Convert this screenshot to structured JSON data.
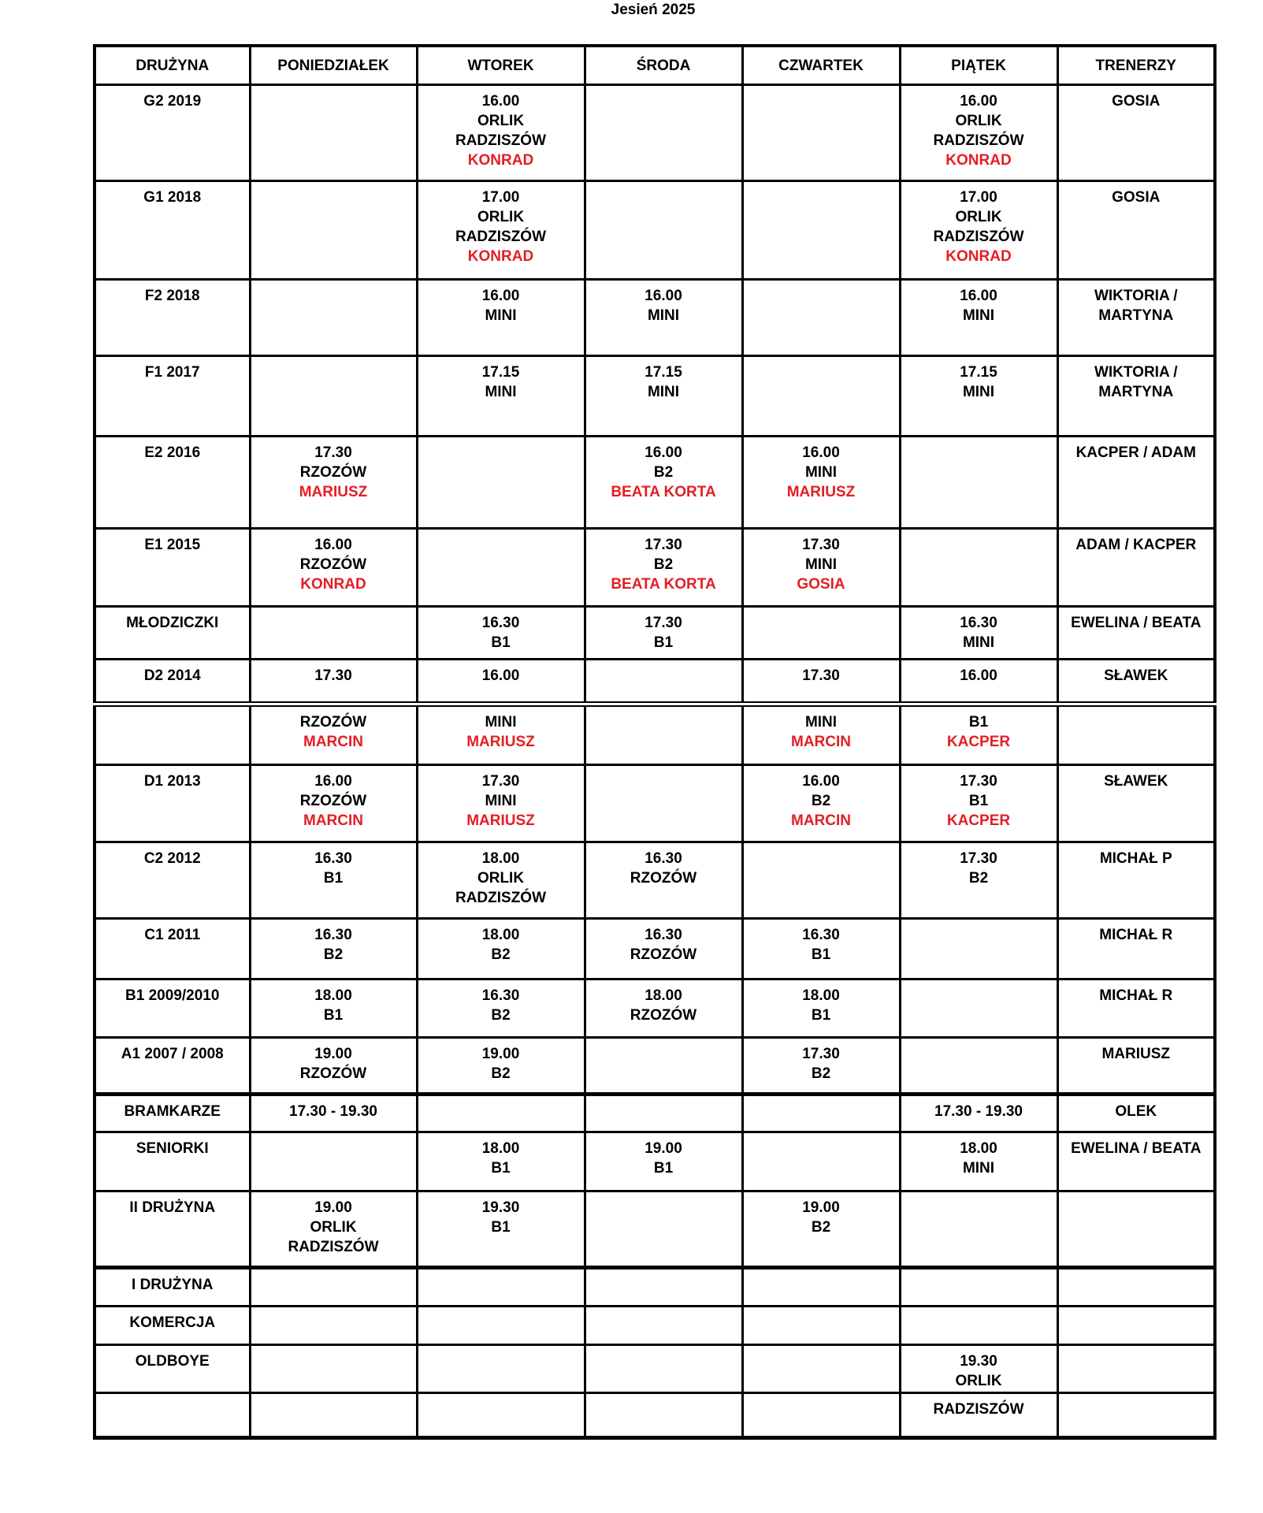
{
  "page": {
    "title": "Jesień 2025"
  },
  "table": {
    "columns": [
      "DRUŻYNA",
      "PONIEDZIAŁEK",
      "WTOREK",
      "ŚRODA",
      "CZWARTEK",
      "PIĄTEK",
      "TRENERZY"
    ],
    "colors": {
      "highlight_red": "#e31e24",
      "text_black": "#000000",
      "border_black": "#000000"
    },
    "rows": [
      {
        "team": "G2 2019",
        "days": [
          [],
          [
            {
              "text": "16.00"
            },
            {
              "text": "ORLIK"
            },
            {
              "text": "RADZISZÓW"
            },
            {
              "text": "KONRAD",
              "red": true
            }
          ],
          [],
          [],
          [
            {
              "text": "16.00"
            },
            {
              "text": "ORLIK"
            },
            {
              "text": "RADZISZÓW"
            },
            {
              "text": "KONRAD",
              "red": true
            }
          ]
        ],
        "trainer": "GOSIA"
      },
      {
        "team": "G1 2018",
        "days": [
          [],
          [
            {
              "text": "17.00"
            },
            {
              "text": "ORLIK"
            },
            {
              "text": "RADZISZÓW"
            },
            {
              "text": "KONRAD",
              "red": true
            }
          ],
          [],
          [],
          [
            {
              "text": "17.00"
            },
            {
              "text": "ORLIK"
            },
            {
              "text": "RADZISZÓW"
            },
            {
              "text": "KONRAD",
              "red": true
            }
          ]
        ],
        "trainer": "GOSIA"
      },
      {
        "team": "F2 2018",
        "days": [
          [],
          [
            {
              "text": "16.00"
            },
            {
              "text": "MINI"
            }
          ],
          [
            {
              "text": "16.00"
            },
            {
              "text": "MINI"
            }
          ],
          [],
          [
            {
              "text": "16.00"
            },
            {
              "text": "MINI"
            }
          ]
        ],
        "trainer": "WIKTORIA / MARTYNA"
      },
      {
        "team": "F1 2017",
        "days": [
          [],
          [
            {
              "text": "17.15"
            },
            {
              "text": "MINI"
            }
          ],
          [
            {
              "text": "17.15"
            },
            {
              "text": "MINI"
            }
          ],
          [],
          [
            {
              "text": "17.15"
            },
            {
              "text": "MINI"
            }
          ]
        ],
        "trainer": "WIKTORIA / MARTYNA"
      },
      {
        "team": "E2 2016",
        "days": [
          [
            {
              "text": "17.30"
            },
            {
              "text": "RZOZÓW"
            },
            {
              "text": "MARIUSZ",
              "red": true
            }
          ],
          [],
          [
            {
              "text": "16.00"
            },
            {
              "text": "B2"
            },
            {
              "text": "BEATA KORTA",
              "red": true
            }
          ],
          [
            {
              "text": "16.00"
            },
            {
              "text": "MINI"
            },
            {
              "text": "MARIUSZ",
              "red": true
            }
          ],
          []
        ],
        "trainer": "KACPER / ADAM"
      },
      {
        "team": "E1 2015",
        "days": [
          [
            {
              "text": "16.00"
            },
            {
              "text": "RZOZÓW"
            },
            {
              "text": "KONRAD",
              "red": true
            }
          ],
          [],
          [
            {
              "text": "17.30"
            },
            {
              "text": "B2"
            },
            {
              "text": "BEATA KORTA",
              "red": true
            }
          ],
          [
            {
              "text": "17.30"
            },
            {
              "text": "MINI"
            },
            {
              "text": "GOSIA",
              "red": true
            }
          ],
          []
        ],
        "trainer": "ADAM / KACPER"
      },
      {
        "team": "MŁODZICZKI",
        "days": [
          [],
          [
            {
              "text": "16.30"
            },
            {
              "text": "B1"
            }
          ],
          [
            {
              "text": "17.30"
            },
            {
              "text": "B1"
            }
          ],
          [],
          [
            {
              "text": "16.30"
            },
            {
              "text": "MINI"
            }
          ]
        ],
        "trainer": "EWELINA / BEATA"
      },
      {
        "team": "D2 2014",
        "days": [
          [
            {
              "text": "17.30"
            }
          ],
          [
            {
              "text": "16.00"
            }
          ],
          [],
          [
            {
              "text": "17.30"
            }
          ],
          [
            {
              "text": "16.00"
            }
          ]
        ],
        "trainer": "SŁAWEK"
      },
      {
        "team": "",
        "days": [
          [
            {
              "text": "RZOZÓW"
            },
            {
              "text": "MARCIN",
              "red": true
            }
          ],
          [
            {
              "text": "MINI"
            },
            {
              "text": "MARIUSZ",
              "red": true
            }
          ],
          [],
          [
            {
              "text": "MINI"
            },
            {
              "text": "MARCIN",
              "red": true
            }
          ],
          [
            {
              "text": "B1"
            },
            {
              "text": "KACPER",
              "red": true
            }
          ]
        ],
        "trainer": ""
      },
      {
        "team": "D1 2013",
        "days": [
          [
            {
              "text": "16.00"
            },
            {
              "text": "RZOZÓW"
            },
            {
              "text": "MARCIN",
              "red": true
            }
          ],
          [
            {
              "text": "17.30"
            },
            {
              "text": "MINI"
            },
            {
              "text": "MARIUSZ",
              "red": true
            }
          ],
          [],
          [
            {
              "text": "16.00"
            },
            {
              "text": "B2"
            },
            {
              "text": "MARCIN",
              "red": true
            }
          ],
          [
            {
              "text": "17.30"
            },
            {
              "text": "B1"
            },
            {
              "text": "KACPER",
              "red": true
            }
          ]
        ],
        "trainer": "SŁAWEK"
      },
      {
        "team": "C2 2012",
        "days": [
          [
            {
              "text": "16.30"
            },
            {
              "text": "B1"
            }
          ],
          [
            {
              "text": "18.00"
            },
            {
              "text": "ORLIK"
            },
            {
              "text": "RADZISZÓW"
            }
          ],
          [
            {
              "text": "16.30"
            },
            {
              "text": "RZOZÓW"
            }
          ],
          [],
          [
            {
              "text": "17.30"
            },
            {
              "text": "B2"
            }
          ]
        ],
        "trainer": "MICHAŁ P"
      },
      {
        "team": "C1 2011",
        "days": [
          [
            {
              "text": "16.30"
            },
            {
              "text": "B2"
            }
          ],
          [
            {
              "text": "18.00"
            },
            {
              "text": "B2"
            }
          ],
          [
            {
              "text": "16.30"
            },
            {
              "text": "RZOZÓW"
            }
          ],
          [
            {
              "text": "16.30"
            },
            {
              "text": "B1"
            }
          ],
          []
        ],
        "trainer": "MICHAŁ R"
      },
      {
        "team": "B1 2009/2010",
        "days": [
          [
            {
              "text": "18.00"
            },
            {
              "text": "B1"
            }
          ],
          [
            {
              "text": "16.30"
            },
            {
              "text": "B2"
            }
          ],
          [
            {
              "text": "18.00"
            },
            {
              "text": "RZOZÓW"
            }
          ],
          [
            {
              "text": "18.00"
            },
            {
              "text": "B1"
            }
          ],
          []
        ],
        "trainer": "MICHAŁ R"
      },
      {
        "team": "A1 2007 / 2008",
        "days": [
          [
            {
              "text": "19.00"
            },
            {
              "text": "RZOZÓW"
            }
          ],
          [
            {
              "text": "19.00"
            },
            {
              "text": "B2"
            }
          ],
          [],
          [
            {
              "text": "17.30"
            },
            {
              "text": "B2"
            }
          ],
          []
        ],
        "trainer": "MARIUSZ"
      },
      {
        "team": "BRAMKARZE",
        "days": [
          [
            {
              "text": "17.30 - 19.30"
            }
          ],
          [],
          [],
          [],
          [
            {
              "text": "17.30 - 19.30"
            }
          ]
        ],
        "trainer": "OLEK"
      },
      {
        "team": "SENIORKI",
        "days": [
          [],
          [
            {
              "text": "18.00"
            },
            {
              "text": "B1"
            }
          ],
          [
            {
              "text": "19.00"
            },
            {
              "text": "B1"
            }
          ],
          [],
          [
            {
              "text": "18.00"
            },
            {
              "text": "MINI"
            }
          ]
        ],
        "trainer": "EWELINA / BEATA"
      },
      {
        "team": "II DRUŻYNA",
        "days": [
          [
            {
              "text": "19.00"
            },
            {
              "text": "ORLIK"
            },
            {
              "text": "RADZISZÓW"
            }
          ],
          [
            {
              "text": "19.30"
            },
            {
              "text": "B1"
            }
          ],
          [],
          [
            {
              "text": "19.00"
            },
            {
              "text": "B2"
            }
          ],
          []
        ],
        "trainer": ""
      },
      {
        "team": "I DRUŻYNA",
        "days": [
          [],
          [],
          [],
          [],
          []
        ],
        "trainer": ""
      },
      {
        "team": "KOMERCJA",
        "days": [
          [],
          [],
          [],
          [],
          []
        ],
        "trainer": ""
      },
      {
        "team": "OLDBOYE",
        "days": [
          [],
          [],
          [],
          [],
          [
            {
              "text": "19.30"
            },
            {
              "text": "ORLIK"
            }
          ]
        ],
        "trainer": ""
      },
      {
        "team": "",
        "days": [
          [],
          [],
          [],
          [],
          [
            {
              "text": "RADZISZÓW"
            }
          ]
        ],
        "trainer": ""
      }
    ]
  }
}
